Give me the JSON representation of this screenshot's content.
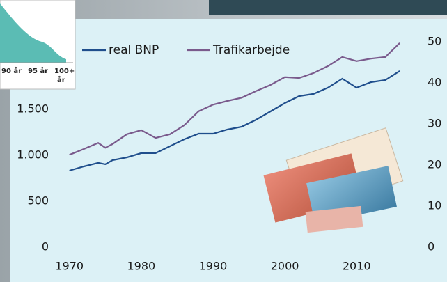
{
  "chart_data": {
    "type": "line",
    "x": [
      1970,
      1972,
      1974,
      1975,
      1976,
      1978,
      1980,
      1982,
      1984,
      1986,
      1988,
      1990,
      1992,
      1994,
      1996,
      1998,
      2000,
      2002,
      2004,
      2006,
      2008,
      2010,
      2012,
      2014,
      2016
    ],
    "series": [
      {
        "name": "real BNP",
        "color": "#1f4e8c",
        "axis": "y",
        "values": [
          833,
          879,
          917,
          902,
          947,
          977,
          1023,
          1023,
          1098,
          1174,
          1235,
          1235,
          1280,
          1311,
          1386,
          1477,
          1568,
          1644,
          1667,
          1735,
          1833,
          1735,
          1795,
          1818,
          1917
        ]
      },
      {
        "name": "Trafikarbejde",
        "color": "#7a5a8c",
        "axis": "y2",
        "values": [
          22.5,
          23.9,
          25.4,
          24.2,
          25.1,
          27.5,
          28.5,
          26.6,
          27.5,
          29.7,
          33.1,
          34.7,
          35.6,
          36.4,
          38.0,
          39.5,
          41.4,
          41.2,
          42.4,
          44.1,
          46.3,
          45.3,
          45.9,
          46.3,
          49.7
        ]
      }
    ],
    "xlim": [
      1967.6,
      2019
    ],
    "xticks": [
      1970,
      1980,
      1990,
      2000,
      2010
    ],
    "ylim": [
      0,
      2386
    ],
    "yticks": [
      0,
      500,
      {
        "value": 1000,
        "label": "1.000"
      },
      {
        "value": 1500,
        "label": "1.500"
      }
    ],
    "y2lim": [
      0,
      53.4
    ],
    "y2ticks": [
      0,
      10,
      20,
      30,
      40,
      50
    ],
    "grid": false
  },
  "inset": {
    "labels": [
      "90 år",
      "95 år",
      "100+",
      "år"
    ]
  }
}
